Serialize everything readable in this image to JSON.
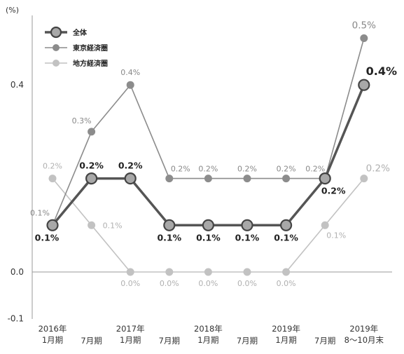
{
  "chart_data": {
    "type": "line",
    "unit_label": "(%)",
    "y_ticks": [
      "0.4",
      "0.0",
      "-0.1"
    ],
    "ylim": [
      -0.1,
      0.5
    ],
    "grid": false,
    "legend_position": "top-left",
    "categories": [
      [
        "2016年",
        "1月期"
      ],
      [
        "7月期"
      ],
      [
        "2017年",
        "1月期"
      ],
      [
        "7月期"
      ],
      [
        "2018年",
        "1月期"
      ],
      [
        "7月期"
      ],
      [
        "2019年",
        "1月期"
      ],
      [
        "7月期"
      ],
      [
        "2019年",
        "8～10月末"
      ]
    ],
    "series": [
      {
        "name": "全体",
        "color": "#555555",
        "marker_fill": "#a8a8a8",
        "values": [
          0.1,
          0.2,
          0.2,
          0.1,
          0.1,
          0.1,
          0.1,
          0.2,
          0.4
        ],
        "labels": [
          "0.1%",
          "0.2%",
          "0.2%",
          "0.1%",
          "0.1%",
          "0.1%",
          "0.1%",
          "0.2%",
          "0.4%"
        ]
      },
      {
        "name": "東京経済圏",
        "color": "#8c8c8c",
        "marker_fill": "#8c8c8c",
        "values": [
          0.1,
          0.3,
          0.4,
          0.2,
          0.2,
          0.2,
          0.2,
          0.2,
          0.5
        ],
        "labels": [
          "0.1%",
          "0.3%",
          "0.4%",
          "0.2%",
          "0.2%",
          "0.2%",
          "0.2%",
          "0.2%",
          "0.5%"
        ]
      },
      {
        "name": "地方経済圏",
        "color": "#c2c2c2",
        "marker_fill": "#c2c2c2",
        "values": [
          0.2,
          0.1,
          0.0,
          0.0,
          0.0,
          0.0,
          0.0,
          0.1,
          0.2
        ],
        "labels": [
          "0.2%",
          "0.1%",
          "0.0%",
          "0.0%",
          "0.0%",
          "0.0%",
          "0.0%",
          "0.1%",
          "0.2%"
        ]
      }
    ]
  }
}
